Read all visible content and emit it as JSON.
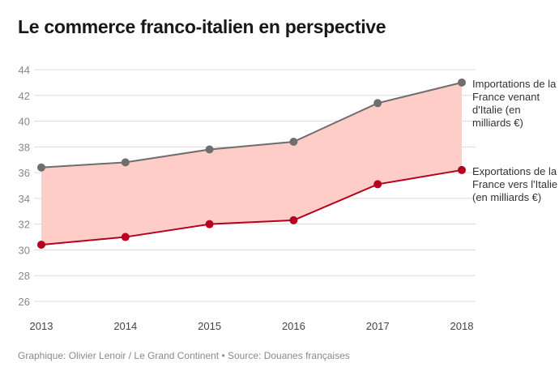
{
  "title": "Le commerce franco-italien en perspective",
  "footer": "Graphique: Olivier Lenoir / Le Grand Continent • Source: Douanes françaises",
  "chart_data": {
    "type": "line",
    "title": "Le commerce franco-italien en perspective",
    "x": [
      "2013",
      "2014",
      "2015",
      "2016",
      "2017",
      "2018"
    ],
    "ylim": [
      26,
      44
    ],
    "yticks": [
      26,
      28,
      30,
      32,
      34,
      36,
      38,
      40,
      42,
      44
    ],
    "grid": true,
    "fill_between_series": true,
    "fill_color": "#ffcdc8",
    "legend_placement": "right, at line ends",
    "series": [
      {
        "name": "Importations de la France venant d'Italie (en milliards €)",
        "color": "#6e6e6e",
        "values": [
          36.4,
          36.8,
          37.8,
          38.4,
          41.4,
          43.0
        ]
      },
      {
        "name": "Exportations de la France vers l'Italie (en milliards €)",
        "color": "#b5001e",
        "values": [
          30.4,
          31.0,
          32.0,
          32.3,
          35.1,
          36.2
        ]
      }
    ]
  }
}
